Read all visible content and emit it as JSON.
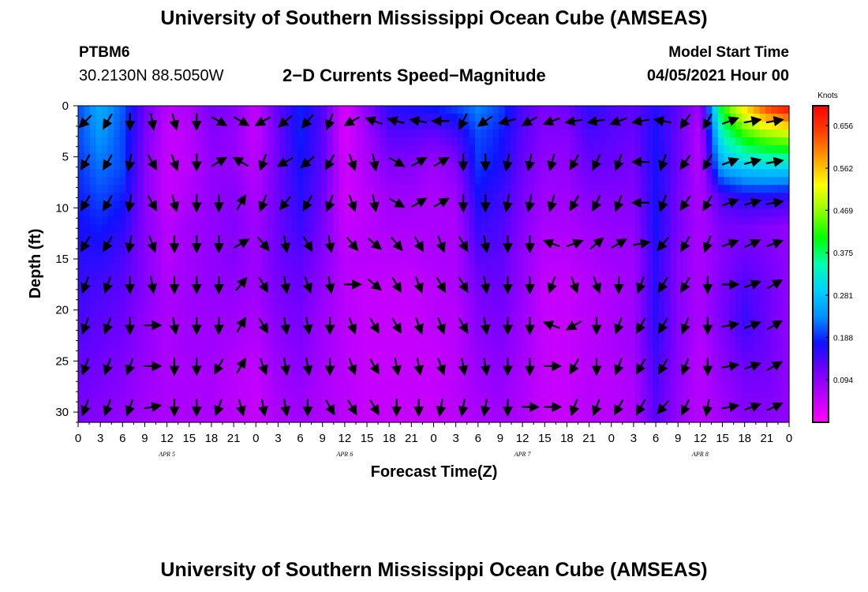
{
  "header": {
    "title": "University of Southern Mississippi Ocean Cube (AMSEAS)",
    "station": "PTBM6",
    "coordinates": "30.2130N  88.5050W",
    "subtitle": "2−D Currents Speed−Magnitude",
    "model_start_label": "Model Start Time",
    "model_start_value": "04/05/2021 Hour 00"
  },
  "footer": {
    "title": "University of Southern Mississippi Ocean Cube (AMSEAS)"
  },
  "chart_data": {
    "type": "heatmap",
    "title": "2−D Currents Speed−Magnitude",
    "xlabel": "Forecast Time(Z)",
    "ylabel": "Depth (ft)",
    "x_hours_range": [
      0,
      96
    ],
    "y_range": [
      0,
      31
    ],
    "x_ticks": [
      "0",
      "3",
      "6",
      "9",
      "12",
      "15",
      "18",
      "21",
      "0",
      "3",
      "6",
      "9",
      "12",
      "15",
      "18",
      "21",
      "0",
      "3",
      "6",
      "9",
      "12",
      "15",
      "18",
      "21",
      "0",
      "3",
      "6",
      "9",
      "12",
      "15",
      "18",
      "21",
      "0"
    ],
    "y_ticks": [
      "0",
      "5",
      "10",
      "15",
      "20",
      "25",
      "30"
    ],
    "day_labels": [
      {
        "hour": 12,
        "text": "APR  5"
      },
      {
        "hour": 36,
        "text": "APR  6"
      },
      {
        "hour": 60,
        "text": "APR  7"
      },
      {
        "hour": 84,
        "text": "APR  8"
      }
    ],
    "colorbar": {
      "label": "Knots",
      "min": 0.0,
      "max": 0.7,
      "ticks": [
        "0.656",
        "0.562",
        "0.469",
        "0.375",
        "0.281",
        "0.188",
        "0.094"
      ],
      "tick_values": [
        0.656,
        0.562,
        0.469,
        0.375,
        0.281,
        0.188,
        0.094
      ],
      "colors": [
        "#ff00ff",
        "#bb00ff",
        "#7000ff",
        "#1010ff",
        "#0090ff",
        "#00d0ff",
        "#00ffb0",
        "#00ff00",
        "#90ff00",
        "#ffff00",
        "#ffa000",
        "#ff4000",
        "#ff0000"
      ]
    },
    "speed_grid": {
      "x_hours": [
        0,
        3,
        6,
        9,
        12,
        15,
        18,
        21,
        24,
        27,
        30,
        33,
        36,
        39,
        42,
        45,
        48,
        51,
        54,
        57,
        60,
        63,
        66,
        69,
        72,
        75,
        78,
        81,
        84,
        87,
        90,
        93,
        96
      ],
      "depths_ft": [
        0,
        3,
        6,
        9,
        12,
        15,
        18,
        21,
        24,
        27,
        30
      ],
      "values": [
        [
          0.2,
          0.26,
          0.21,
          0.12,
          0.06,
          0.07,
          0.11,
          0.1,
          0.05,
          0.13,
          0.18,
          0.14,
          0.03,
          0.1,
          0.16,
          0.17,
          0.18,
          0.2,
          0.23,
          0.2,
          0.14,
          0.11,
          0.12,
          0.16,
          0.14,
          0.13,
          0.16,
          0.13,
          0.08,
          0.42,
          0.55,
          0.65,
          0.7
        ],
        [
          0.2,
          0.24,
          0.2,
          0.11,
          0.05,
          0.06,
          0.1,
          0.09,
          0.05,
          0.12,
          0.18,
          0.13,
          0.03,
          0.08,
          0.13,
          0.13,
          0.12,
          0.14,
          0.2,
          0.18,
          0.13,
          0.1,
          0.1,
          0.14,
          0.13,
          0.12,
          0.17,
          0.12,
          0.06,
          0.34,
          0.42,
          0.46,
          0.48
        ],
        [
          0.19,
          0.22,
          0.2,
          0.1,
          0.05,
          0.06,
          0.09,
          0.09,
          0.06,
          0.12,
          0.17,
          0.13,
          0.04,
          0.07,
          0.1,
          0.1,
          0.08,
          0.1,
          0.19,
          0.17,
          0.12,
          0.09,
          0.09,
          0.12,
          0.12,
          0.11,
          0.17,
          0.12,
          0.06,
          0.26,
          0.29,
          0.3,
          0.3
        ],
        [
          0.18,
          0.2,
          0.18,
          0.1,
          0.05,
          0.07,
          0.09,
          0.1,
          0.07,
          0.12,
          0.16,
          0.12,
          0.04,
          0.06,
          0.08,
          0.08,
          0.07,
          0.08,
          0.17,
          0.15,
          0.11,
          0.08,
          0.08,
          0.1,
          0.1,
          0.1,
          0.17,
          0.11,
          0.07,
          0.14,
          0.16,
          0.16,
          0.15
        ],
        [
          0.17,
          0.18,
          0.16,
          0.1,
          0.06,
          0.08,
          0.09,
          0.1,
          0.08,
          0.12,
          0.15,
          0.11,
          0.05,
          0.06,
          0.07,
          0.07,
          0.07,
          0.07,
          0.15,
          0.14,
          0.1,
          0.07,
          0.07,
          0.08,
          0.09,
          0.09,
          0.17,
          0.11,
          0.07,
          0.11,
          0.11,
          0.1,
          0.09
        ],
        [
          0.16,
          0.16,
          0.14,
          0.1,
          0.06,
          0.08,
          0.09,
          0.1,
          0.08,
          0.12,
          0.13,
          0.1,
          0.06,
          0.06,
          0.06,
          0.06,
          0.07,
          0.07,
          0.13,
          0.13,
          0.09,
          0.06,
          0.06,
          0.07,
          0.08,
          0.08,
          0.16,
          0.1,
          0.07,
          0.1,
          0.12,
          0.11,
          0.09
        ],
        [
          0.15,
          0.14,
          0.13,
          0.1,
          0.07,
          0.08,
          0.09,
          0.09,
          0.08,
          0.11,
          0.12,
          0.09,
          0.06,
          0.05,
          0.05,
          0.05,
          0.06,
          0.07,
          0.11,
          0.12,
          0.09,
          0.05,
          0.05,
          0.06,
          0.07,
          0.08,
          0.16,
          0.1,
          0.07,
          0.11,
          0.14,
          0.12,
          0.09
        ],
        [
          0.14,
          0.13,
          0.12,
          0.09,
          0.07,
          0.08,
          0.08,
          0.08,
          0.07,
          0.1,
          0.11,
          0.08,
          0.06,
          0.05,
          0.05,
          0.05,
          0.06,
          0.06,
          0.1,
          0.11,
          0.08,
          0.05,
          0.05,
          0.06,
          0.07,
          0.08,
          0.16,
          0.1,
          0.07,
          0.11,
          0.15,
          0.12,
          0.09
        ],
        [
          0.13,
          0.12,
          0.11,
          0.09,
          0.07,
          0.08,
          0.08,
          0.07,
          0.06,
          0.09,
          0.1,
          0.08,
          0.06,
          0.05,
          0.05,
          0.05,
          0.05,
          0.06,
          0.09,
          0.1,
          0.08,
          0.05,
          0.05,
          0.06,
          0.07,
          0.08,
          0.15,
          0.1,
          0.06,
          0.1,
          0.13,
          0.12,
          0.09
        ],
        [
          0.12,
          0.11,
          0.1,
          0.08,
          0.07,
          0.07,
          0.07,
          0.06,
          0.05,
          0.08,
          0.09,
          0.07,
          0.06,
          0.05,
          0.05,
          0.05,
          0.05,
          0.06,
          0.08,
          0.09,
          0.07,
          0.05,
          0.05,
          0.06,
          0.06,
          0.07,
          0.14,
          0.09,
          0.06,
          0.09,
          0.11,
          0.11,
          0.09
        ],
        [
          0.11,
          0.1,
          0.09,
          0.08,
          0.07,
          0.07,
          0.07,
          0.06,
          0.05,
          0.07,
          0.08,
          0.07,
          0.06,
          0.05,
          0.05,
          0.05,
          0.05,
          0.06,
          0.07,
          0.08,
          0.07,
          0.05,
          0.05,
          0.06,
          0.06,
          0.07,
          0.13,
          0.09,
          0.06,
          0.08,
          0.1,
          0.1,
          0.09
        ]
      ]
    },
    "vector_grid": {
      "x_hours": [
        1,
        4,
        7,
        10,
        13,
        16,
        19,
        22,
        25,
        28,
        31,
        34,
        37,
        40,
        43,
        46,
        49,
        52,
        55,
        58,
        61,
        64,
        67,
        70,
        73,
        76,
        79,
        82,
        85,
        88,
        91,
        94
      ],
      "depths_ft": [
        1.5,
        5.5,
        9.5,
        13.5,
        17.5,
        21.5,
        25.5,
        29.5
      ],
      "directions_deg": [
        [
          225,
          210,
          180,
          170,
          165,
          180,
          120,
          120,
          240,
          230,
          220,
          200,
          240,
          290,
          285,
          280,
          270,
          205,
          235,
          255,
          240,
          250,
          260,
          260,
          250,
          260,
          280,
          215,
          210,
          70,
          80,
          80
        ],
        [
          210,
          210,
          190,
          150,
          160,
          180,
          60,
          300,
          200,
          240,
          230,
          210,
          160,
          170,
          120,
          60,
          60,
          180,
          180,
          190,
          190,
          195,
          210,
          205,
          200,
          270,
          200,
          215,
          210,
          70,
          75,
          80
        ],
        [
          210,
          210,
          190,
          150,
          165,
          180,
          180,
          30,
          200,
          220,
          210,
          200,
          160,
          170,
          120,
          60,
          60,
          180,
          180,
          190,
          190,
          195,
          210,
          205,
          200,
          270,
          200,
          215,
          210,
          70,
          75,
          80
        ],
        [
          210,
          210,
          190,
          160,
          180,
          180,
          180,
          60,
          140,
          170,
          150,
          170,
          140,
          130,
          140,
          150,
          160,
          150,
          170,
          180,
          180,
          290,
          70,
          50,
          60,
          80,
          220,
          210,
          200,
          70,
          65,
          70
        ],
        [
          200,
          200,
          180,
          170,
          180,
          180,
          180,
          40,
          150,
          170,
          160,
          170,
          90,
          130,
          150,
          160,
          150,
          150,
          170,
          180,
          180,
          200,
          160,
          160,
          180,
          200,
          210,
          210,
          180,
          90,
          70,
          60
        ],
        [
          200,
          200,
          180,
          90,
          170,
          180,
          180,
          30,
          150,
          170,
          170,
          180,
          160,
          150,
          150,
          160,
          160,
          150,
          170,
          180,
          180,
          290,
          240,
          180,
          200,
          210,
          210,
          200,
          180,
          80,
          70,
          60
        ],
        [
          200,
          200,
          200,
          90,
          180,
          180,
          210,
          30,
          160,
          170,
          170,
          180,
          160,
          150,
          170,
          170,
          160,
          170,
          170,
          180,
          180,
          90,
          210,
          180,
          200,
          210,
          210,
          200,
          180,
          80,
          70,
          60
        ],
        [
          200,
          200,
          200,
          80,
          180,
          180,
          200,
          165,
          170,
          170,
          180,
          150,
          150,
          150,
          180,
          180,
          190,
          190,
          190,
          180,
          90,
          90,
          200,
          200,
          210,
          210,
          220,
          205,
          190,
          80,
          70,
          65
        ]
      ]
    }
  }
}
